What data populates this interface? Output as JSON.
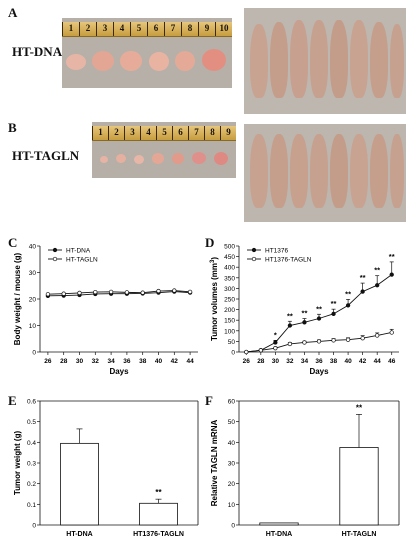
{
  "panels": {
    "A": {
      "letter": "A",
      "label": "HT-DNA",
      "ruler_ticks": [
        "10",
        "9",
        "8",
        "7",
        "6",
        "5",
        "4",
        "3",
        "2",
        "1"
      ]
    },
    "B": {
      "letter": "B",
      "label": "HT-TAGLN",
      "ruler_ticks": [
        "9",
        "8",
        "7",
        "6",
        "5",
        "4",
        "3",
        "2",
        "1"
      ]
    },
    "C": {
      "letter": "C"
    },
    "D": {
      "letter": "D"
    },
    "E": {
      "letter": "E"
    },
    "F": {
      "letter": "F"
    }
  },
  "colors": {
    "background": "#ffffff",
    "photo_bg": "#b9b2aa",
    "tumor": "#e8a39a",
    "mouse": "#c6a08e",
    "line": "#111111"
  },
  "chart_data": [
    {
      "id": "C",
      "type": "line",
      "xlabel": "Days",
      "ylabel": "Body weight / mouse (g)",
      "x": [
        26,
        28,
        30,
        32,
        34,
        36,
        38,
        40,
        42,
        44
      ],
      "xlim": [
        25,
        45
      ],
      "ylim": [
        0,
        40
      ],
      "yticks": [
        0,
        10,
        20,
        30,
        40
      ],
      "series": [
        {
          "name": "HT-DNA",
          "marker": "filled",
          "values": [
            21.2,
            21.3,
            21.5,
            21.9,
            22.0,
            22.0,
            22.1,
            22.4,
            22.8,
            22.4
          ]
        },
        {
          "name": "HT-TAGLN",
          "marker": "open",
          "values": [
            21.8,
            22.0,
            22.3,
            22.6,
            22.7,
            22.5,
            22.4,
            23.0,
            23.2,
            22.7
          ]
        }
      ],
      "legend_position": "top-left",
      "grid": false
    },
    {
      "id": "D",
      "type": "line",
      "xlabel": "Days",
      "ylabel": "Tumor volumes (mm3)",
      "x": [
        26,
        28,
        30,
        32,
        34,
        36,
        38,
        40,
        42,
        44,
        46
      ],
      "xlim": [
        25,
        47
      ],
      "ylim": [
        0,
        500
      ],
      "yticks": [
        0,
        50,
        100,
        150,
        200,
        250,
        300,
        350,
        400,
        450,
        500
      ],
      "series": [
        {
          "name": "HT1376",
          "marker": "filled",
          "values": [
            0,
            8,
            45,
            125,
            140,
            158,
            180,
            220,
            285,
            315,
            365
          ],
          "errors": [
            0,
            3,
            10,
            20,
            18,
            20,
            22,
            28,
            40,
            45,
            60
          ]
        },
        {
          "name": "HT1376-TAGLN",
          "marker": "open",
          "values": [
            0,
            8,
            18,
            38,
            45,
            50,
            55,
            58,
            65,
            78,
            92
          ],
          "errors": [
            0,
            2,
            5,
            6,
            6,
            7,
            8,
            9,
            12,
            12,
            15
          ]
        }
      ],
      "annotations": [
        {
          "x": 30,
          "text": "*"
        },
        {
          "x": 32,
          "text": "**"
        },
        {
          "x": 34,
          "text": "**"
        },
        {
          "x": 36,
          "text": "**"
        },
        {
          "x": 38,
          "text": "**"
        },
        {
          "x": 40,
          "text": "**"
        },
        {
          "x": 42,
          "text": "**"
        },
        {
          "x": 44,
          "text": "**"
        },
        {
          "x": 46,
          "text": "**"
        }
      ],
      "legend_position": "top-left",
      "grid": false
    },
    {
      "id": "E",
      "type": "bar",
      "categories": [
        "HT-DNA",
        "HT1376-TAGLN"
      ],
      "values": [
        0.395,
        0.105
      ],
      "errors": [
        0.07,
        0.02
      ],
      "ylabel": "Tumor weight (g)",
      "ylim": [
        0,
        0.6
      ],
      "yticks": [
        0,
        0.1,
        0.2,
        0.3,
        0.4,
        0.5,
        0.6
      ],
      "annotations": [
        {
          "category": "HT1376-TAGLN",
          "text": "**"
        }
      ]
    },
    {
      "id": "F",
      "type": "bar",
      "categories": [
        "HT-DNA",
        "HT-TAGLN"
      ],
      "values": [
        1,
        37.5
      ],
      "errors": [
        0,
        16
      ],
      "ylabel": "Relative TAGLN mRNA",
      "ylim": [
        0,
        60
      ],
      "yticks": [
        0,
        10,
        20,
        30,
        40,
        50,
        60
      ],
      "annotations": [
        {
          "category": "HT-TAGLN",
          "text": "**"
        }
      ]
    }
  ]
}
